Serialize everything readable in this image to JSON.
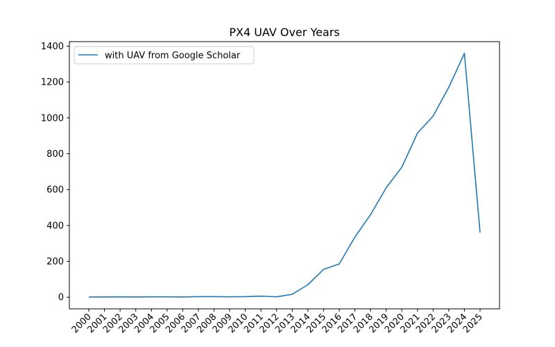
{
  "chart_data": {
    "type": "line",
    "title": "PX4 UAV Over Years",
    "xlabel": "",
    "ylabel": "",
    "categories": [
      "2000",
      "2001",
      "2002",
      "2003",
      "2004",
      "2005",
      "2006",
      "2007",
      "2008",
      "2009",
      "2010",
      "2011",
      "2012",
      "2013",
      "2014",
      "2015",
      "2016",
      "2017",
      "2018",
      "2019",
      "2020",
      "2021",
      "2022",
      "2023",
      "2024",
      "2025"
    ],
    "series": [
      {
        "name": "with UAV from Google Scholar",
        "color": "#1f77b4",
        "values": [
          1,
          1,
          2,
          1,
          2,
          2,
          1,
          3,
          3,
          2,
          3,
          6,
          2,
          16,
          70,
          155,
          185,
          335,
          460,
          610,
          725,
          915,
          1010,
          1170,
          1360,
          360
        ]
      }
    ],
    "yticks": [
      0,
      200,
      400,
      600,
      800,
      1000,
      1200,
      1400
    ],
    "ylim": [
      -65,
      1425
    ],
    "grid": false,
    "legend_position": "top-left"
  }
}
